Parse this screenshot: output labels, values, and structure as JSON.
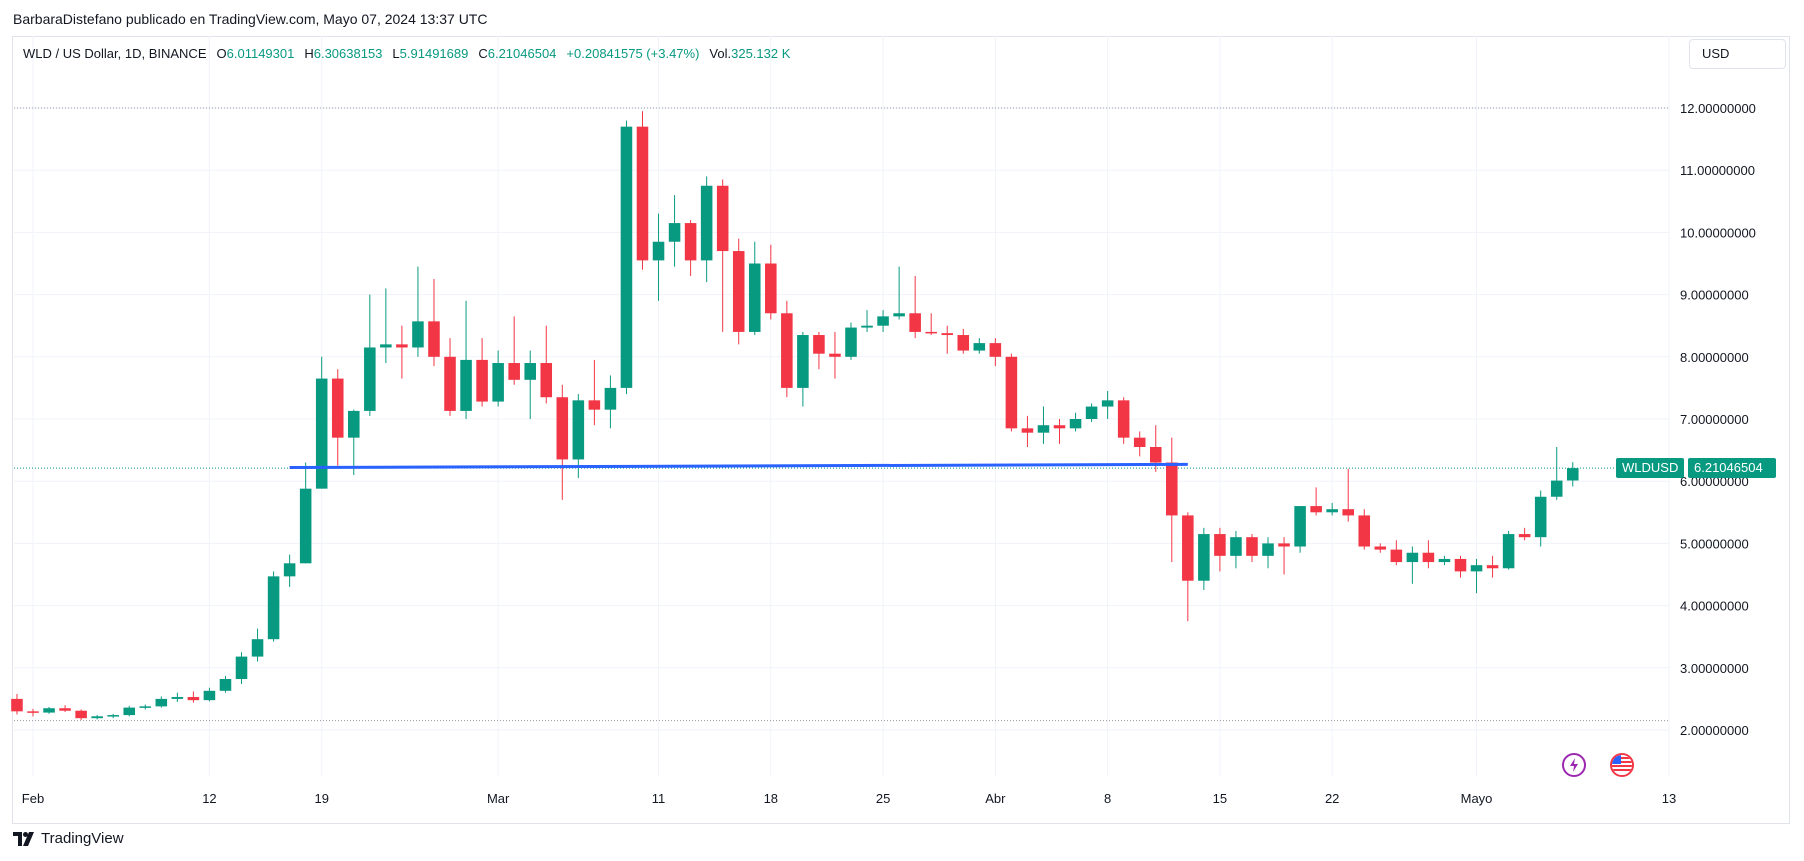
{
  "caption": "BarbaraDistefano publicado en TradingView.com, Mayo 07, 2024 13:37 UTC",
  "legend": {
    "symbol": "WLD / US Dollar, 1D, BINANCE",
    "o_label": "O",
    "o_value": "6.01149301",
    "h_label": "H",
    "h_value": "6.30638153",
    "l_label": "L",
    "l_value": "5.91491689",
    "c_label": "C",
    "c_value": "6.21046504",
    "change": "+0.20841575 (+3.47%)",
    "vol_label": "Vol.",
    "vol_value": "325.132 K"
  },
  "currency_button": "USD",
  "last_price_tag": {
    "symbol": "WLDUSD",
    "price": "6.21046504"
  },
  "footer_brand": "TradingView",
  "icons": {
    "alert": "lightning-icon",
    "flag": "us-flag-icon",
    "logo": "tradingview-logo-icon"
  },
  "colors": {
    "up": "#089981",
    "down": "#f23645",
    "trendline": "#2962ff",
    "grid": "#f0f3fa",
    "text": "#131722"
  },
  "chart_data": {
    "type": "candlestick",
    "title": "WLD / US Dollar, 1D, BINANCE",
    "xlabel": "",
    "ylabel": "",
    "ylim": [
      1.0,
      13.0
    ],
    "y_ticks": [
      "2.00000000",
      "3.00000000",
      "4.00000000",
      "5.00000000",
      "6.00000000",
      "7.00000000",
      "8.00000000",
      "9.00000000",
      "10.00000000",
      "11.00000000",
      "12.00000000"
    ],
    "x_ticks": [
      {
        "label": "Feb",
        "date": "2024-02-01"
      },
      {
        "label": "12",
        "date": "2024-02-12"
      },
      {
        "label": "19",
        "date": "2024-02-19"
      },
      {
        "label": "Mar",
        "date": "2024-03-01"
      },
      {
        "label": "11",
        "date": "2024-03-11"
      },
      {
        "label": "18",
        "date": "2024-03-18"
      },
      {
        "label": "25",
        "date": "2024-03-25"
      },
      {
        "label": "Abr",
        "date": "2024-04-01"
      },
      {
        "label": "8",
        "date": "2024-04-08"
      },
      {
        "label": "15",
        "date": "2024-04-15"
      },
      {
        "label": "22",
        "date": "2024-04-22"
      },
      {
        "label": "Mayo",
        "date": "2024-05-01"
      },
      {
        "label": "13",
        "date": "2024-05-13"
      }
    ],
    "x_range": [
      "2024-01-31",
      "2024-05-14"
    ],
    "candles": [
      {
        "date": "2024-01-31",
        "o": 2.5,
        "h": 2.58,
        "l": 2.25,
        "c": 2.3
      },
      {
        "date": "2024-02-01",
        "o": 2.3,
        "h": 2.34,
        "l": 2.22,
        "c": 2.28
      },
      {
        "date": "2024-02-02",
        "o": 2.28,
        "h": 2.37,
        "l": 2.26,
        "c": 2.35
      },
      {
        "date": "2024-02-03",
        "o": 2.35,
        "h": 2.4,
        "l": 2.29,
        "c": 2.31
      },
      {
        "date": "2024-02-04",
        "o": 2.31,
        "h": 2.33,
        "l": 2.16,
        "c": 2.19
      },
      {
        "date": "2024-02-05",
        "o": 2.19,
        "h": 2.24,
        "l": 2.17,
        "c": 2.22
      },
      {
        "date": "2024-02-06",
        "o": 2.22,
        "h": 2.26,
        "l": 2.19,
        "c": 2.24
      },
      {
        "date": "2024-02-07",
        "o": 2.24,
        "h": 2.39,
        "l": 2.22,
        "c": 2.36
      },
      {
        "date": "2024-02-08",
        "o": 2.36,
        "h": 2.41,
        "l": 2.33,
        "c": 2.38
      },
      {
        "date": "2024-02-09",
        "o": 2.38,
        "h": 2.54,
        "l": 2.36,
        "c": 2.5
      },
      {
        "date": "2024-02-10",
        "o": 2.5,
        "h": 2.6,
        "l": 2.45,
        "c": 2.53
      },
      {
        "date": "2024-02-11",
        "o": 2.53,
        "h": 2.62,
        "l": 2.44,
        "c": 2.48
      },
      {
        "date": "2024-02-12",
        "o": 2.48,
        "h": 2.68,
        "l": 2.46,
        "c": 2.63
      },
      {
        "date": "2024-02-13",
        "o": 2.63,
        "h": 2.87,
        "l": 2.6,
        "c": 2.82
      },
      {
        "date": "2024-02-14",
        "o": 2.82,
        "h": 3.25,
        "l": 2.74,
        "c": 3.18
      },
      {
        "date": "2024-02-15",
        "o": 3.18,
        "h": 3.63,
        "l": 3.1,
        "c": 3.46
      },
      {
        "date": "2024-02-16",
        "o": 3.46,
        "h": 4.55,
        "l": 3.42,
        "c": 4.47
      },
      {
        "date": "2024-02-17",
        "o": 4.47,
        "h": 4.82,
        "l": 4.3,
        "c": 4.68
      },
      {
        "date": "2024-02-18",
        "o": 4.68,
        "h": 6.3,
        "l": 4.68,
        "c": 5.88
      },
      {
        "date": "2024-02-19",
        "o": 5.88,
        "h": 8.0,
        "l": 5.88,
        "c": 7.65
      },
      {
        "date": "2024-02-20",
        "o": 7.65,
        "h": 7.8,
        "l": 6.25,
        "c": 6.7
      },
      {
        "date": "2024-02-21",
        "o": 6.7,
        "h": 7.15,
        "l": 6.1,
        "c": 7.13
      },
      {
        "date": "2024-02-22",
        "o": 7.13,
        "h": 9.0,
        "l": 7.05,
        "c": 8.15
      },
      {
        "date": "2024-02-23",
        "o": 8.15,
        "h": 9.1,
        "l": 7.9,
        "c": 8.2
      },
      {
        "date": "2024-02-24",
        "o": 8.2,
        "h": 8.5,
        "l": 7.65,
        "c": 8.15
      },
      {
        "date": "2024-02-25",
        "o": 8.15,
        "h": 9.45,
        "l": 8.0,
        "c": 8.57
      },
      {
        "date": "2024-02-26",
        "o": 8.57,
        "h": 9.25,
        "l": 7.85,
        "c": 8.0
      },
      {
        "date": "2024-02-27",
        "o": 8.0,
        "h": 8.3,
        "l": 7.05,
        "c": 7.13
      },
      {
        "date": "2024-02-28",
        "o": 7.13,
        "h": 8.9,
        "l": 7.0,
        "c": 7.95
      },
      {
        "date": "2024-02-29",
        "o": 7.95,
        "h": 8.3,
        "l": 7.2,
        "c": 7.28
      },
      {
        "date": "2024-03-01",
        "o": 7.28,
        "h": 8.1,
        "l": 7.2,
        "c": 7.9
      },
      {
        "date": "2024-03-02",
        "o": 7.9,
        "h": 8.65,
        "l": 7.55,
        "c": 7.63
      },
      {
        "date": "2024-03-03",
        "o": 7.63,
        "h": 8.1,
        "l": 7.0,
        "c": 7.9
      },
      {
        "date": "2024-03-04",
        "o": 7.9,
        "h": 8.5,
        "l": 7.25,
        "c": 7.35
      },
      {
        "date": "2024-03-05",
        "o": 7.35,
        "h": 7.55,
        "l": 5.7,
        "c": 6.35
      },
      {
        "date": "2024-03-06",
        "o": 6.35,
        "h": 7.4,
        "l": 6.05,
        "c": 7.3
      },
      {
        "date": "2024-03-07",
        "o": 7.3,
        "h": 7.95,
        "l": 6.9,
        "c": 7.15
      },
      {
        "date": "2024-03-08",
        "o": 7.15,
        "h": 7.7,
        "l": 6.85,
        "c": 7.5
      },
      {
        "date": "2024-03-09",
        "o": 7.5,
        "h": 11.8,
        "l": 7.4,
        "c": 11.7
      },
      {
        "date": "2024-03-10",
        "o": 11.7,
        "h": 11.95,
        "l": 9.4,
        "c": 9.55
      },
      {
        "date": "2024-03-11",
        "o": 9.55,
        "h": 10.3,
        "l": 8.9,
        "c": 9.85
      },
      {
        "date": "2024-03-12",
        "o": 9.85,
        "h": 10.6,
        "l": 9.45,
        "c": 10.15
      },
      {
        "date": "2024-03-13",
        "o": 10.15,
        "h": 10.2,
        "l": 9.3,
        "c": 9.55
      },
      {
        "date": "2024-03-14",
        "o": 9.55,
        "h": 10.9,
        "l": 9.2,
        "c": 10.75
      },
      {
        "date": "2024-03-15",
        "o": 10.75,
        "h": 10.85,
        "l": 8.4,
        "c": 9.7
      },
      {
        "date": "2024-03-16",
        "o": 9.7,
        "h": 9.9,
        "l": 8.2,
        "c": 8.4
      },
      {
        "date": "2024-03-17",
        "o": 8.4,
        "h": 9.85,
        "l": 8.35,
        "c": 9.5
      },
      {
        "date": "2024-03-18",
        "o": 9.5,
        "h": 9.8,
        "l": 8.6,
        "c": 8.7
      },
      {
        "date": "2024-03-19",
        "o": 8.7,
        "h": 8.9,
        "l": 7.35,
        "c": 7.5
      },
      {
        "date": "2024-03-20",
        "o": 7.5,
        "h": 8.4,
        "l": 7.2,
        "c": 8.35
      },
      {
        "date": "2024-03-21",
        "o": 8.35,
        "h": 8.4,
        "l": 7.8,
        "c": 8.05
      },
      {
        "date": "2024-03-22",
        "o": 8.05,
        "h": 8.4,
        "l": 7.65,
        "c": 8.0
      },
      {
        "date": "2024-03-23",
        "o": 8.0,
        "h": 8.55,
        "l": 7.95,
        "c": 8.47
      },
      {
        "date": "2024-03-24",
        "o": 8.47,
        "h": 8.75,
        "l": 8.4,
        "c": 8.5
      },
      {
        "date": "2024-03-25",
        "o": 8.5,
        "h": 8.75,
        "l": 8.4,
        "c": 8.65
      },
      {
        "date": "2024-03-26",
        "o": 8.65,
        "h": 9.45,
        "l": 8.6,
        "c": 8.7
      },
      {
        "date": "2024-03-27",
        "o": 8.7,
        "h": 9.3,
        "l": 8.3,
        "c": 8.4
      },
      {
        "date": "2024-03-28",
        "o": 8.4,
        "h": 8.7,
        "l": 8.35,
        "c": 8.38
      },
      {
        "date": "2024-03-29",
        "o": 8.38,
        "h": 8.5,
        "l": 8.05,
        "c": 8.35
      },
      {
        "date": "2024-03-30",
        "o": 8.35,
        "h": 8.45,
        "l": 8.05,
        "c": 8.1
      },
      {
        "date": "2024-03-31",
        "o": 8.1,
        "h": 8.3,
        "l": 8.05,
        "c": 8.22
      },
      {
        "date": "2024-04-01",
        "o": 8.22,
        "h": 8.3,
        "l": 7.85,
        "c": 8.0
      },
      {
        "date": "2024-04-02",
        "o": 8.0,
        "h": 8.05,
        "l": 6.8,
        "c": 6.85
      },
      {
        "date": "2024-04-03",
        "o": 6.85,
        "h": 7.05,
        "l": 6.55,
        "c": 6.78
      },
      {
        "date": "2024-04-04",
        "o": 6.78,
        "h": 7.2,
        "l": 6.6,
        "c": 6.9
      },
      {
        "date": "2024-04-05",
        "o": 6.9,
        "h": 7.0,
        "l": 6.6,
        "c": 6.85
      },
      {
        "date": "2024-04-06",
        "o": 6.85,
        "h": 7.1,
        "l": 6.8,
        "c": 7.0
      },
      {
        "date": "2024-04-07",
        "o": 7.0,
        "h": 7.25,
        "l": 6.95,
        "c": 7.2
      },
      {
        "date": "2024-04-08",
        "o": 7.2,
        "h": 7.45,
        "l": 7.0,
        "c": 7.3
      },
      {
        "date": "2024-04-09",
        "o": 7.3,
        "h": 7.35,
        "l": 6.6,
        "c": 6.7
      },
      {
        "date": "2024-04-10",
        "o": 6.7,
        "h": 6.8,
        "l": 6.4,
        "c": 6.55
      },
      {
        "date": "2024-04-11",
        "o": 6.55,
        "h": 6.9,
        "l": 6.15,
        "c": 6.3
      },
      {
        "date": "2024-04-12",
        "o": 6.3,
        "h": 6.7,
        "l": 4.7,
        "c": 5.45
      },
      {
        "date": "2024-04-13",
        "o": 5.45,
        "h": 5.5,
        "l": 3.75,
        "c": 4.4
      },
      {
        "date": "2024-04-14",
        "o": 4.4,
        "h": 5.25,
        "l": 4.25,
        "c": 5.15
      },
      {
        "date": "2024-04-15",
        "o": 5.15,
        "h": 5.25,
        "l": 4.55,
        "c": 4.8
      },
      {
        "date": "2024-04-16",
        "o": 4.8,
        "h": 5.2,
        "l": 4.6,
        "c": 5.1
      },
      {
        "date": "2024-04-17",
        "o": 5.1,
        "h": 5.15,
        "l": 4.7,
        "c": 4.8
      },
      {
        "date": "2024-04-18",
        "o": 4.8,
        "h": 5.1,
        "l": 4.6,
        "c": 5.0
      },
      {
        "date": "2024-04-19",
        "o": 5.0,
        "h": 5.1,
        "l": 4.5,
        "c": 4.95
      },
      {
        "date": "2024-04-20",
        "o": 4.95,
        "h": 5.6,
        "l": 4.85,
        "c": 5.6
      },
      {
        "date": "2024-04-21",
        "o": 5.6,
        "h": 5.9,
        "l": 5.45,
        "c": 5.5
      },
      {
        "date": "2024-04-22",
        "o": 5.5,
        "h": 5.65,
        "l": 5.45,
        "c": 5.55
      },
      {
        "date": "2024-04-23",
        "o": 5.55,
        "h": 6.2,
        "l": 5.35,
        "c": 5.45
      },
      {
        "date": "2024-04-24",
        "o": 5.45,
        "h": 5.55,
        "l": 4.9,
        "c": 4.95
      },
      {
        "date": "2024-04-25",
        "o": 4.95,
        "h": 5.0,
        "l": 4.85,
        "c": 4.9
      },
      {
        "date": "2024-04-26",
        "o": 4.9,
        "h": 5.05,
        "l": 4.65,
        "c": 4.7
      },
      {
        "date": "2024-04-27",
        "o": 4.7,
        "h": 4.95,
        "l": 4.35,
        "c": 4.85
      },
      {
        "date": "2024-04-28",
        "o": 4.85,
        "h": 5.05,
        "l": 4.6,
        "c": 4.7
      },
      {
        "date": "2024-04-29",
        "o": 4.7,
        "h": 4.8,
        "l": 4.65,
        "c": 4.75
      },
      {
        "date": "2024-04-30",
        "o": 4.75,
        "h": 4.8,
        "l": 4.45,
        "c": 4.55
      },
      {
        "date": "2024-05-01",
        "o": 4.55,
        "h": 4.75,
        "l": 4.2,
        "c": 4.65
      },
      {
        "date": "2024-05-02",
        "o": 4.65,
        "h": 4.8,
        "l": 4.45,
        "c": 4.6
      },
      {
        "date": "2024-05-03",
        "o": 4.6,
        "h": 5.2,
        "l": 4.58,
        "c": 5.15
      },
      {
        "date": "2024-05-04",
        "o": 5.15,
        "h": 5.25,
        "l": 5.05,
        "c": 5.1
      },
      {
        "date": "2024-05-05",
        "o": 5.1,
        "h": 5.85,
        "l": 4.95,
        "c": 5.75
      },
      {
        "date": "2024-05-06",
        "o": 5.75,
        "h": 6.55,
        "l": 5.7,
        "c": 6.01
      },
      {
        "date": "2024-05-07",
        "o": 6.01149301,
        "h": 6.30638153,
        "l": 5.91491689,
        "c": 6.21046504
      }
    ],
    "trendline": {
      "from": {
        "date": "2024-02-17",
        "price": 6.22
      },
      "to": {
        "date": "2024-04-13",
        "price": 6.27
      }
    },
    "high_reference_line": 12.0,
    "low_reference_line": 2.15,
    "last_price": 6.21046504,
    "grid": true,
    "price_axis": "right"
  }
}
